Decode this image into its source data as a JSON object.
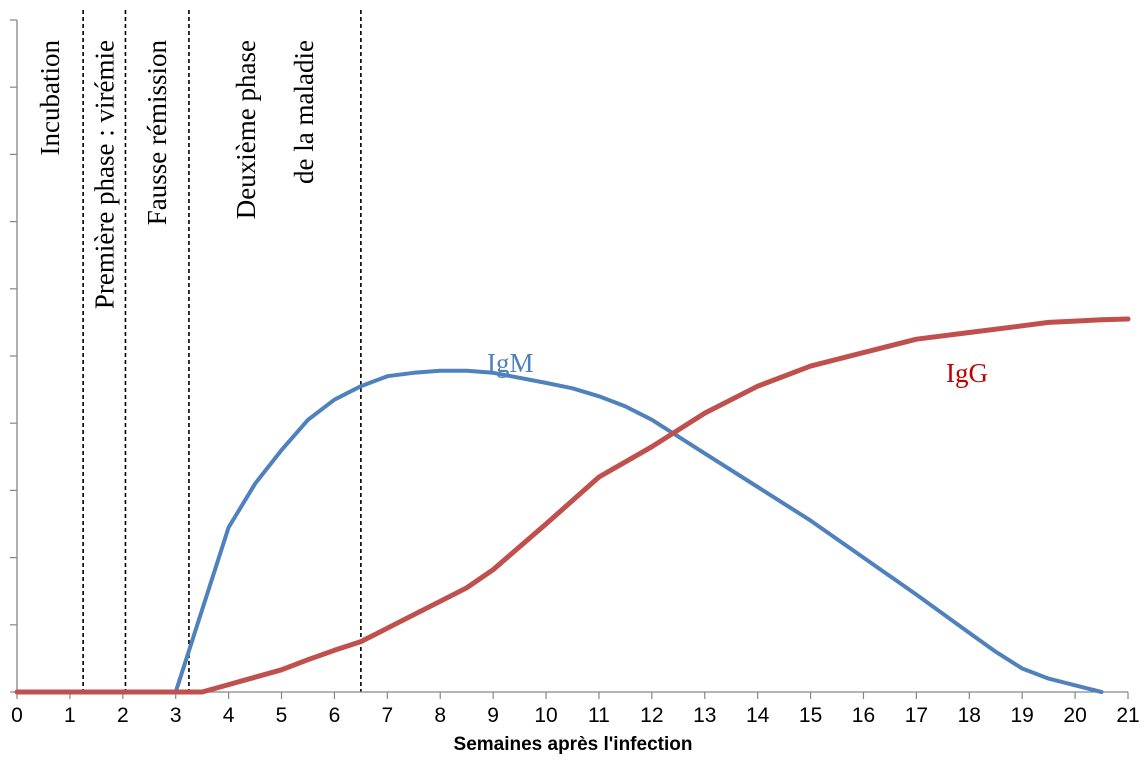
{
  "chart_data": {
    "type": "line",
    "title": "",
    "xlabel": "Semaines après l'infection",
    "ylabel": "",
    "xlim": [
      0,
      21
    ],
    "ylim": [
      0,
      10
    ],
    "x_ticks": [
      "0",
      "1",
      "2",
      "3",
      "4",
      "5",
      "6",
      "7",
      "8",
      "9",
      "10",
      "11",
      "12",
      "13",
      "14",
      "15",
      "16",
      "17",
      "18",
      "19",
      "20",
      "21"
    ],
    "y_ticks_count": 10,
    "y_tick_labels_shown": false,
    "grid": false,
    "legend": "none",
    "phase_boundaries": [
      1.25,
      2.05,
      3.25,
      6.5
    ],
    "phases": [
      {
        "label": "Incubation",
        "lines": [
          "Incubation"
        ]
      },
      {
        "label": "Première phase : virémie",
        "lines": [
          "Première phase : virémie"
        ]
      },
      {
        "label": "Fausse rémission",
        "lines": [
          "Fausse rémission"
        ]
      },
      {
        "label": "Deuxième phase de la maladie",
        "lines": [
          "Deuxième phase",
          "de la maladie"
        ]
      }
    ],
    "series": [
      {
        "name": "IgM",
        "color": "#4f81bd",
        "x": [
          0,
          3,
          4,
          4.5,
          5,
          5.5,
          6,
          6.5,
          7,
          7.5,
          8,
          8.5,
          9,
          10,
          10.5,
          11,
          11.5,
          12,
          13,
          14,
          15,
          16,
          17,
          18,
          18.5,
          19,
          19.5,
          20,
          20.5
        ],
        "y": [
          0,
          0,
          2.45,
          3.1,
          3.6,
          4.05,
          4.35,
          4.55,
          4.7,
          4.75,
          4.78,
          4.78,
          4.75,
          4.6,
          4.52,
          4.4,
          4.25,
          4.05,
          3.55,
          3.05,
          2.55,
          2.0,
          1.45,
          0.88,
          0.6,
          0.35,
          0.2,
          0.1,
          0.0
        ]
      },
      {
        "name": "IgG",
        "color": "#c0504d",
        "x": [
          0,
          3.5,
          4,
          4.5,
          5,
          5.5,
          6,
          6.5,
          7,
          7.5,
          8,
          8.5,
          9,
          10,
          11,
          12,
          13,
          14,
          15,
          16,
          17,
          18,
          19,
          19.5,
          20,
          20.5,
          21
        ],
        "y": [
          0,
          0,
          0.11,
          0.22,
          0.33,
          0.48,
          0.62,
          0.75,
          0.95,
          1.15,
          1.35,
          1.55,
          1.82,
          2.5,
          3.2,
          3.65,
          4.15,
          4.55,
          4.85,
          5.05,
          5.25,
          5.35,
          5.45,
          5.5,
          5.52,
          5.54,
          5.55
        ]
      }
    ]
  },
  "colors": {
    "axis": "#868686",
    "phase_line": "#000000",
    "igm_label": "#4f81bd",
    "igg_label": "#c00000"
  }
}
